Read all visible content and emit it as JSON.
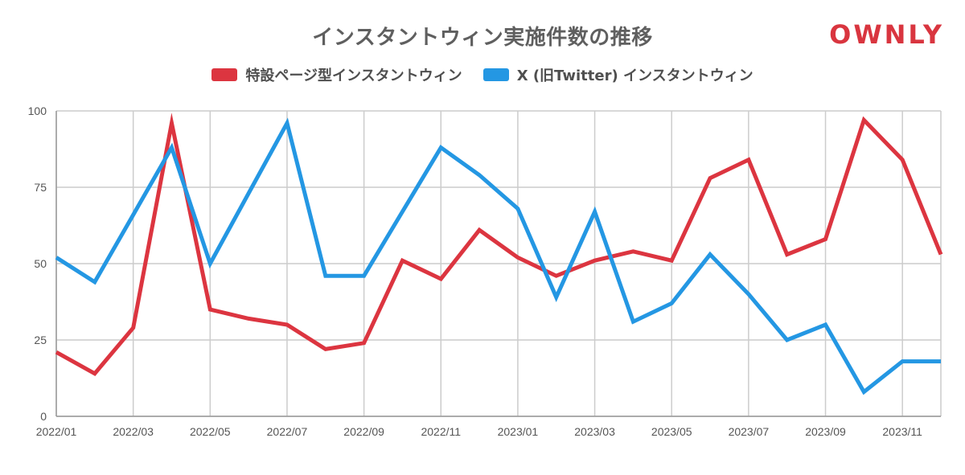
{
  "title": "インスタントウィン実施件数の推移",
  "logo": "OWNLY",
  "colors": {
    "series_red": "#dc3540",
    "series_blue": "#2497e3",
    "grid": "#cccccc",
    "axis": "#999999"
  },
  "chart_data": {
    "type": "line",
    "title": "インスタントウィン実施件数の推移",
    "xlabel": "",
    "ylabel": "",
    "ylim": [
      0,
      100
    ],
    "yticks": [
      0,
      25,
      50,
      75,
      100
    ],
    "grid": true,
    "legend_position": "top-center",
    "x": [
      "2022/01",
      "2022/02",
      "2022/03",
      "2022/04",
      "2022/05",
      "2022/06",
      "2022/07",
      "2022/08",
      "2022/09",
      "2022/10",
      "2022/11",
      "2022/12",
      "2023/01",
      "2023/02",
      "2023/03",
      "2023/04",
      "2023/05",
      "2023/06",
      "2023/07",
      "2023/08",
      "2023/09",
      "2023/10",
      "2023/11",
      "2023/12"
    ],
    "xtick_labels": [
      "2022/01",
      "2022/03",
      "2022/05",
      "2022/07",
      "2022/09",
      "2022/11",
      "2023/01",
      "2023/03",
      "2023/05",
      "2023/07",
      "2023/09",
      "2023/11"
    ],
    "series": [
      {
        "name": "特設ページ型インスタントウィン",
        "color": "#dc3540",
        "values": [
          21,
          14,
          29,
          96,
          35,
          32,
          30,
          22,
          24,
          51,
          45,
          61,
          52,
          46,
          51,
          54,
          51,
          78,
          84,
          53,
          58,
          97,
          84,
          53
        ]
      },
      {
        "name": "X (旧Twitter) インスタントウィン",
        "color": "#2497e3",
        "values": [
          52,
          44,
          66,
          88,
          50,
          73,
          96,
          46,
          46,
          67,
          88,
          79,
          68,
          39,
          67,
          31,
          37,
          53,
          40,
          25,
          30,
          8,
          18,
          18
        ]
      }
    ]
  }
}
